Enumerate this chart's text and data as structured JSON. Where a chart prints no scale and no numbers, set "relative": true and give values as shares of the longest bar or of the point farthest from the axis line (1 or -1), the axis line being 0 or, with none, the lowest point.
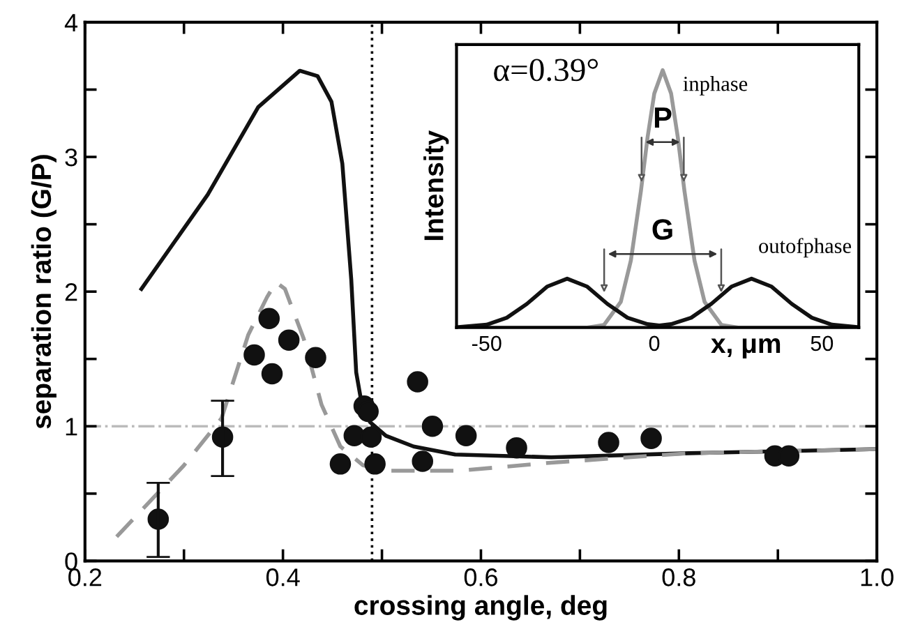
{
  "chart_data": [
    {
      "type": "scatter",
      "xlabel": "crossing angle, deg",
      "ylabel": "separation ratio (G/P)",
      "xlim": [
        0.2,
        1.0
      ],
      "ylim": [
        0,
        4
      ],
      "xticks": [
        {
          "value": 0.2,
          "label": "0.2"
        },
        {
          "value": 0.3,
          "label": null
        },
        {
          "value": 0.4,
          "label": "0.4"
        },
        {
          "value": 0.5,
          "label": null
        },
        {
          "value": 0.6,
          "label": "0.6"
        },
        {
          "value": 0.7,
          "label": null
        },
        {
          "value": 0.8,
          "label": "0.8"
        },
        {
          "value": 0.9,
          "label": null
        },
        {
          "value": 1.0,
          "label": "1.0"
        }
      ],
      "yticks": [
        0,
        {
          "value": 0.5,
          "label": null
        },
        1,
        {
          "value": 1.5,
          "label": null
        },
        2,
        {
          "value": 2.5,
          "label": null
        },
        3,
        {
          "value": 3.5,
          "label": null
        },
        4
      ],
      "grid": false,
      "ref_lines": [
        {
          "axis": "x",
          "value": 0.49,
          "color": "#000000",
          "line_style": "dotted"
        },
        {
          "axis": "y",
          "value": 1,
          "color": "#bbbbbb",
          "line_style": "dashdot"
        }
      ],
      "series": [
        {
          "type": "line",
          "color": "#111111",
          "line_style": "solid",
          "marker": "none",
          "x": [
            0.257,
            0.324,
            0.375,
            0.417,
            0.435,
            0.449,
            0.46,
            0.469,
            0.474,
            0.479,
            0.488,
            0.504,
            0.532,
            0.574,
            0.671,
            0.81,
            1.0
          ],
          "values": [
            2.02,
            2.72,
            3.37,
            3.64,
            3.6,
            3.41,
            2.95,
            2.09,
            1.4,
            1.19,
            1.03,
            0.93,
            0.85,
            0.79,
            0.77,
            0.8,
            0.83
          ]
        },
        {
          "type": "line",
          "color": "#999999",
          "line_style": "dashed",
          "marker": "none",
          "x": [
            0.232,
            0.3,
            0.338,
            0.365,
            0.384,
            0.393,
            0.402,
            0.421,
            0.439,
            0.458,
            0.481,
            0.508,
            0.578,
            0.671,
            0.81,
            1.0
          ],
          "values": [
            0.18,
            0.71,
            1.06,
            1.68,
            1.96,
            2.07,
            2.02,
            1.65,
            1.16,
            0.85,
            0.71,
            0.67,
            0.67,
            0.73,
            0.8,
            0.83
          ]
        },
        {
          "type": "scatter",
          "color": "#111111",
          "marker": "circle",
          "x": [
            0.274,
            0.339,
            0.371,
            0.386,
            0.389,
            0.406,
            0.433,
            0.458,
            0.472,
            0.482,
            0.486,
            0.489,
            0.493,
            0.536,
            0.541,
            0.551,
            0.585,
            0.636,
            0.729,
            0.772,
            0.897,
            0.911
          ],
          "values": [
            0.31,
            0.92,
            1.53,
            1.8,
            1.39,
            1.64,
            1.51,
            0.72,
            0.93,
            1.15,
            1.11,
            0.92,
            0.72,
            1.33,
            0.74,
            1.0,
            0.93,
            0.84,
            0.88,
            0.91,
            0.78,
            0.78
          ],
          "errors": [
            [
              0.03,
              0.58
            ],
            [
              0.63,
              1.19
            ],
            null,
            null,
            null,
            null,
            null,
            null,
            null,
            null,
            null,
            null,
            null,
            null,
            null,
            null,
            null,
            null,
            null,
            null,
            null,
            null
          ]
        }
      ]
    },
    {
      "type": "line",
      "xlabel": "x, μm",
      "ylabel": "Intensity",
      "relative": true,
      "tick_labels": "x",
      "xlim": [
        -59,
        61
      ],
      "xticks": [
        -50,
        0,
        50
      ],
      "annotations": [
        "α=0.39°",
        "P",
        "G"
      ],
      "series": [
        {
          "name": "inphase",
          "color": "#999999",
          "x": [
            -59,
            -20,
            -15,
            -10,
            -7,
            -4,
            -2,
            0,
            2.5,
            5,
            7,
            9,
            12,
            15,
            20,
            25,
            61
          ],
          "values": [
            0,
            0,
            0.01,
            0.1,
            0.26,
            0.53,
            0.74,
            0.91,
            1,
            0.91,
            0.74,
            0.53,
            0.26,
            0.1,
            0.01,
            0,
            0
          ]
        },
        {
          "name": "outofphase",
          "color": "#111111",
          "x": [
            -59,
            -50,
            -44,
            -38,
            -32,
            -26,
            -20,
            -14,
            -8,
            -2,
            1.5,
            5,
            11,
            17,
            23,
            29,
            35,
            41,
            47,
            53,
            61
          ],
          "values": [
            0.001,
            0.011,
            0.038,
            0.092,
            0.159,
            0.19,
            0.159,
            0.092,
            0.038,
            0.013,
            0.008,
            0.013,
            0.038,
            0.092,
            0.159,
            0.19,
            0.159,
            0.092,
            0.038,
            0.011,
            0.001
          ]
        }
      ]
    }
  ]
}
